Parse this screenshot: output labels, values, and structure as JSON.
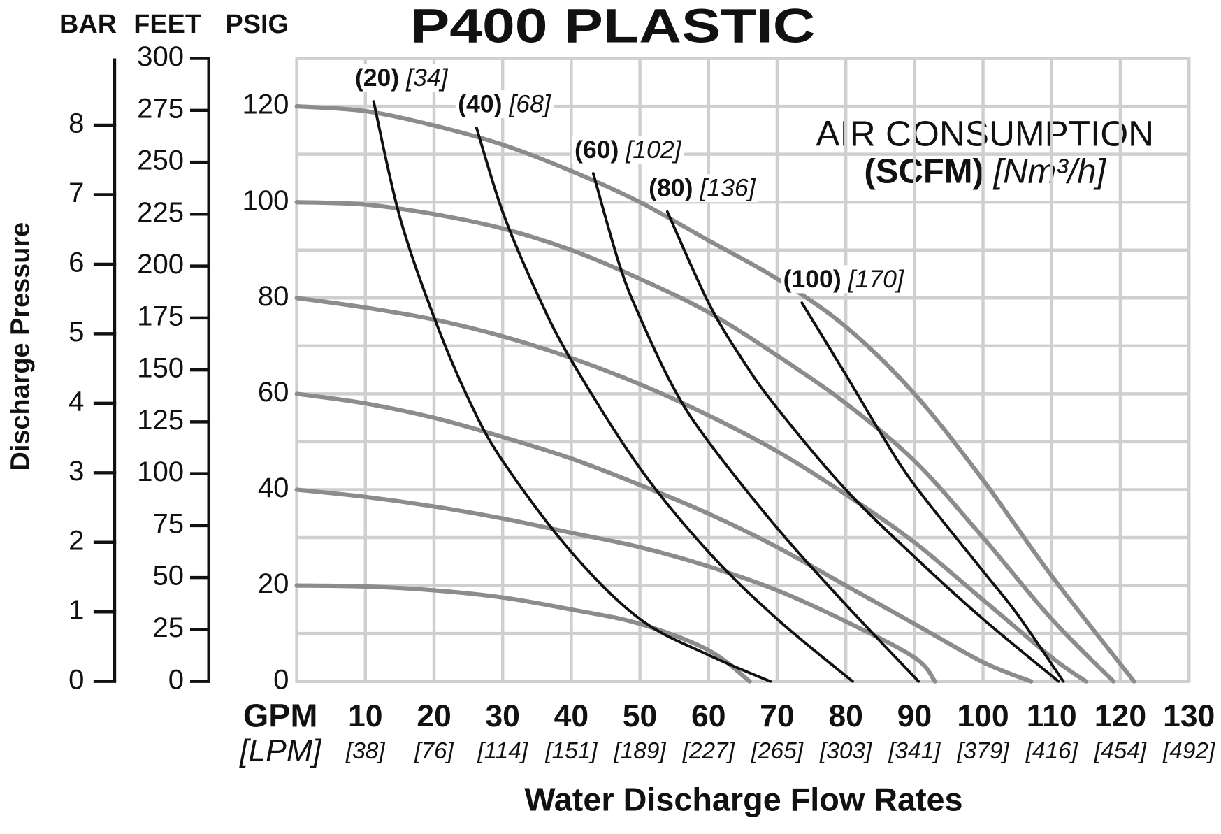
{
  "chart_data": {
    "type": "line",
    "title": "P400 PLASTIC",
    "axis_headers": [
      "BAR",
      "FEET",
      "PSIG"
    ],
    "ylabel": "Discharge Pressure",
    "xlabel": "Water Discharge Flow Rates",
    "x_unit": "GPM",
    "x_unit2": "[LPM]",
    "annotation": {
      "line1": "AIR CONSUMPTION",
      "unit": "(SCFM)",
      "unit2": "[Nm³/h]"
    },
    "xlim": [
      0,
      130
    ],
    "xticks": [
      10,
      20,
      30,
      40,
      50,
      60,
      70,
      80,
      90,
      100,
      110,
      120,
      130
    ],
    "xtick_sublabels": [
      "[38]",
      "[76]",
      "[114]",
      "[151]",
      "[189]",
      "[227]",
      "[265]",
      "[303]",
      "[341]",
      "[379]",
      "[416]",
      "[454]",
      "[492]"
    ],
    "ylim": [
      0,
      130
    ],
    "yticks": [
      0,
      20,
      40,
      60,
      80,
      100,
      120
    ],
    "y_minor_grid": [
      10,
      30,
      50,
      70,
      90,
      110,
      130
    ],
    "bar_lim": [
      0,
      8.96
    ],
    "bar_ticks": [
      0,
      1,
      2,
      3,
      4,
      5,
      6,
      7,
      8
    ],
    "feet_lim": [
      0,
      300
    ],
    "feet_ticks": [
      0,
      25,
      50,
      75,
      100,
      125,
      150,
      175,
      200,
      225,
      250,
      275,
      300
    ],
    "grid": true,
    "series": [
      {
        "color": "#8c8c8c",
        "x": [
          0,
          10,
          20,
          30,
          40,
          50,
          60,
          70,
          80,
          90,
          100,
          110,
          122
        ],
        "values": [
          120,
          119,
          116,
          112,
          106.5,
          100,
          92,
          84,
          74,
          60,
          42,
          22,
          0
        ]
      },
      {
        "color": "#8c8c8c",
        "x": [
          0,
          10,
          20,
          30,
          40,
          50,
          60,
          70,
          80,
          90,
          100,
          110,
          119
        ],
        "values": [
          100,
          99.5,
          97.5,
          94.5,
          90,
          84,
          77,
          68,
          58,
          46,
          30,
          13,
          0
        ]
      },
      {
        "color": "#8c8c8c",
        "x": [
          0,
          10,
          20,
          30,
          40,
          50,
          60,
          70,
          80,
          90,
          100,
          110,
          115
        ],
        "values": [
          80,
          78,
          75.5,
          72,
          67.5,
          62,
          55.5,
          48,
          39,
          29,
          17,
          5,
          0
        ]
      },
      {
        "color": "#8c8c8c",
        "x": [
          0,
          10,
          20,
          30,
          40,
          50,
          60,
          70,
          80,
          90,
          100,
          107
        ],
        "values": [
          60,
          58,
          55,
          51,
          46.5,
          41,
          35,
          28,
          20,
          12,
          4,
          0
        ]
      },
      {
        "color": "#8c8c8c",
        "x": [
          0,
          10,
          20,
          30,
          40,
          50,
          60,
          70,
          80,
          90,
          93
        ],
        "values": [
          40,
          38.5,
          36.5,
          34,
          31,
          28,
          24,
          19,
          12.5,
          5,
          0
        ]
      },
      {
        "color": "#8c8c8c",
        "x": [
          0,
          10,
          20,
          30,
          40,
          50,
          60,
          66
        ],
        "values": [
          20,
          19.8,
          19,
          17.5,
          15,
          12,
          6.5,
          0
        ]
      },
      {
        "name": "(20)",
        "sub": "[34]",
        "color": "#111111",
        "x": [
          11.2,
          15,
          20,
          25,
          30,
          40,
          50,
          60,
          69
        ],
        "values": [
          121,
          97,
          76,
          59,
          46,
          27,
          13,
          5.5,
          0
        ]
      },
      {
        "name": "(40)",
        "sub": "[68]",
        "color": "#111111",
        "x": [
          26.2,
          30,
          35,
          40,
          50,
          60,
          70,
          81
        ],
        "values": [
          115.5,
          98,
          81,
          67,
          44.5,
          27,
          13,
          0
        ]
      },
      {
        "name": "(60)",
        "sub": "[102]",
        "color": "#111111",
        "x": [
          43.2,
          47,
          50,
          55,
          60,
          70,
          80,
          90.6
        ],
        "values": [
          106,
          87,
          76,
          61,
          50,
          32,
          16,
          0
        ]
      },
      {
        "name": "(80)",
        "sub": "[136]",
        "color": "#111111",
        "x": [
          54,
          60,
          65,
          70,
          80,
          90,
          100,
          111
        ],
        "values": [
          98,
          79,
          67,
          57,
          40,
          26,
          13,
          0
        ]
      },
      {
        "name": "(100)",
        "sub": "[170]",
        "color": "#111111",
        "x": [
          73.6,
          80,
          85,
          90,
          100,
          105,
          111.7
        ],
        "values": [
          79,
          64,
          52,
          41,
          23,
          14,
          0
        ]
      }
    ]
  }
}
